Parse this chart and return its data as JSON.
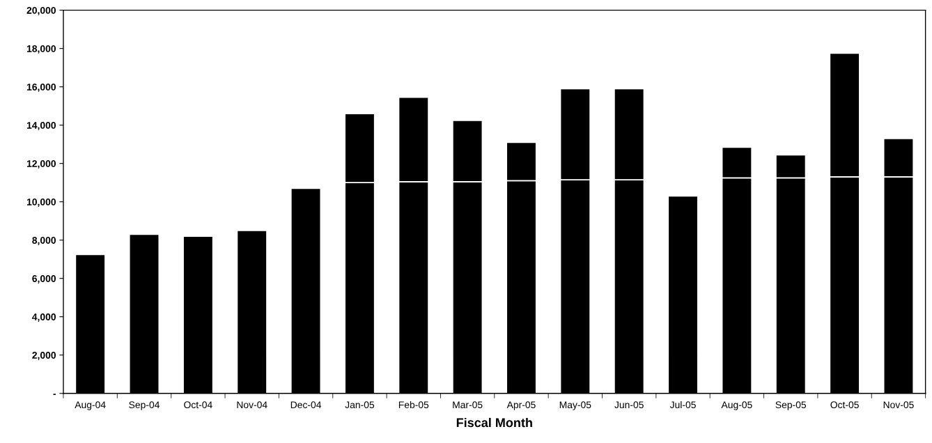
{
  "chart_data": {
    "type": "bar",
    "xlabel": "Fiscal Month",
    "stacked": true,
    "categories": [
      "Aug-04",
      "Sep-04",
      "Oct-04",
      "Nov-04",
      "Dec-04",
      "Jan-05",
      "Feb-05",
      "Mar-05",
      "Apr-05",
      "May-05",
      "Jun-05",
      "Jul-05",
      "Aug-05",
      "Sep-05",
      "Oct-05",
      "Nov-05"
    ],
    "series": [
      {
        "color": "#000000",
        "values": [
          7250,
          8300,
          8200,
          8500,
          10700,
          11000,
          11050,
          11050,
          11100,
          11150,
          11150,
          10300,
          11250,
          11250,
          11300,
          11300
        ]
      },
      {
        "color": "#000000",
        "values": [
          null,
          null,
          null,
          null,
          null,
          3600,
          4400,
          3200,
          2000,
          4750,
          4750,
          null,
          1600,
          1200,
          6450,
          2000
        ]
      }
    ],
    "ylim": [
      0,
      20000
    ],
    "yticks": [
      {
        "value": 0,
        "label": "-"
      },
      {
        "value": 2000,
        "label": "2,000"
      },
      {
        "value": 4000,
        "label": "4,000"
      },
      {
        "value": 6000,
        "label": "6,000"
      },
      {
        "value": 8000,
        "label": "8,000"
      },
      {
        "value": 10000,
        "label": "10,000"
      },
      {
        "value": 12000,
        "label": "12,000"
      },
      {
        "value": 14000,
        "label": "14,000"
      },
      {
        "value": 16000,
        "label": "16,000"
      },
      {
        "value": 18000,
        "label": "18,000"
      },
      {
        "value": 20000,
        "label": "20,000"
      }
    ],
    "grid": false,
    "legend": false
  }
}
